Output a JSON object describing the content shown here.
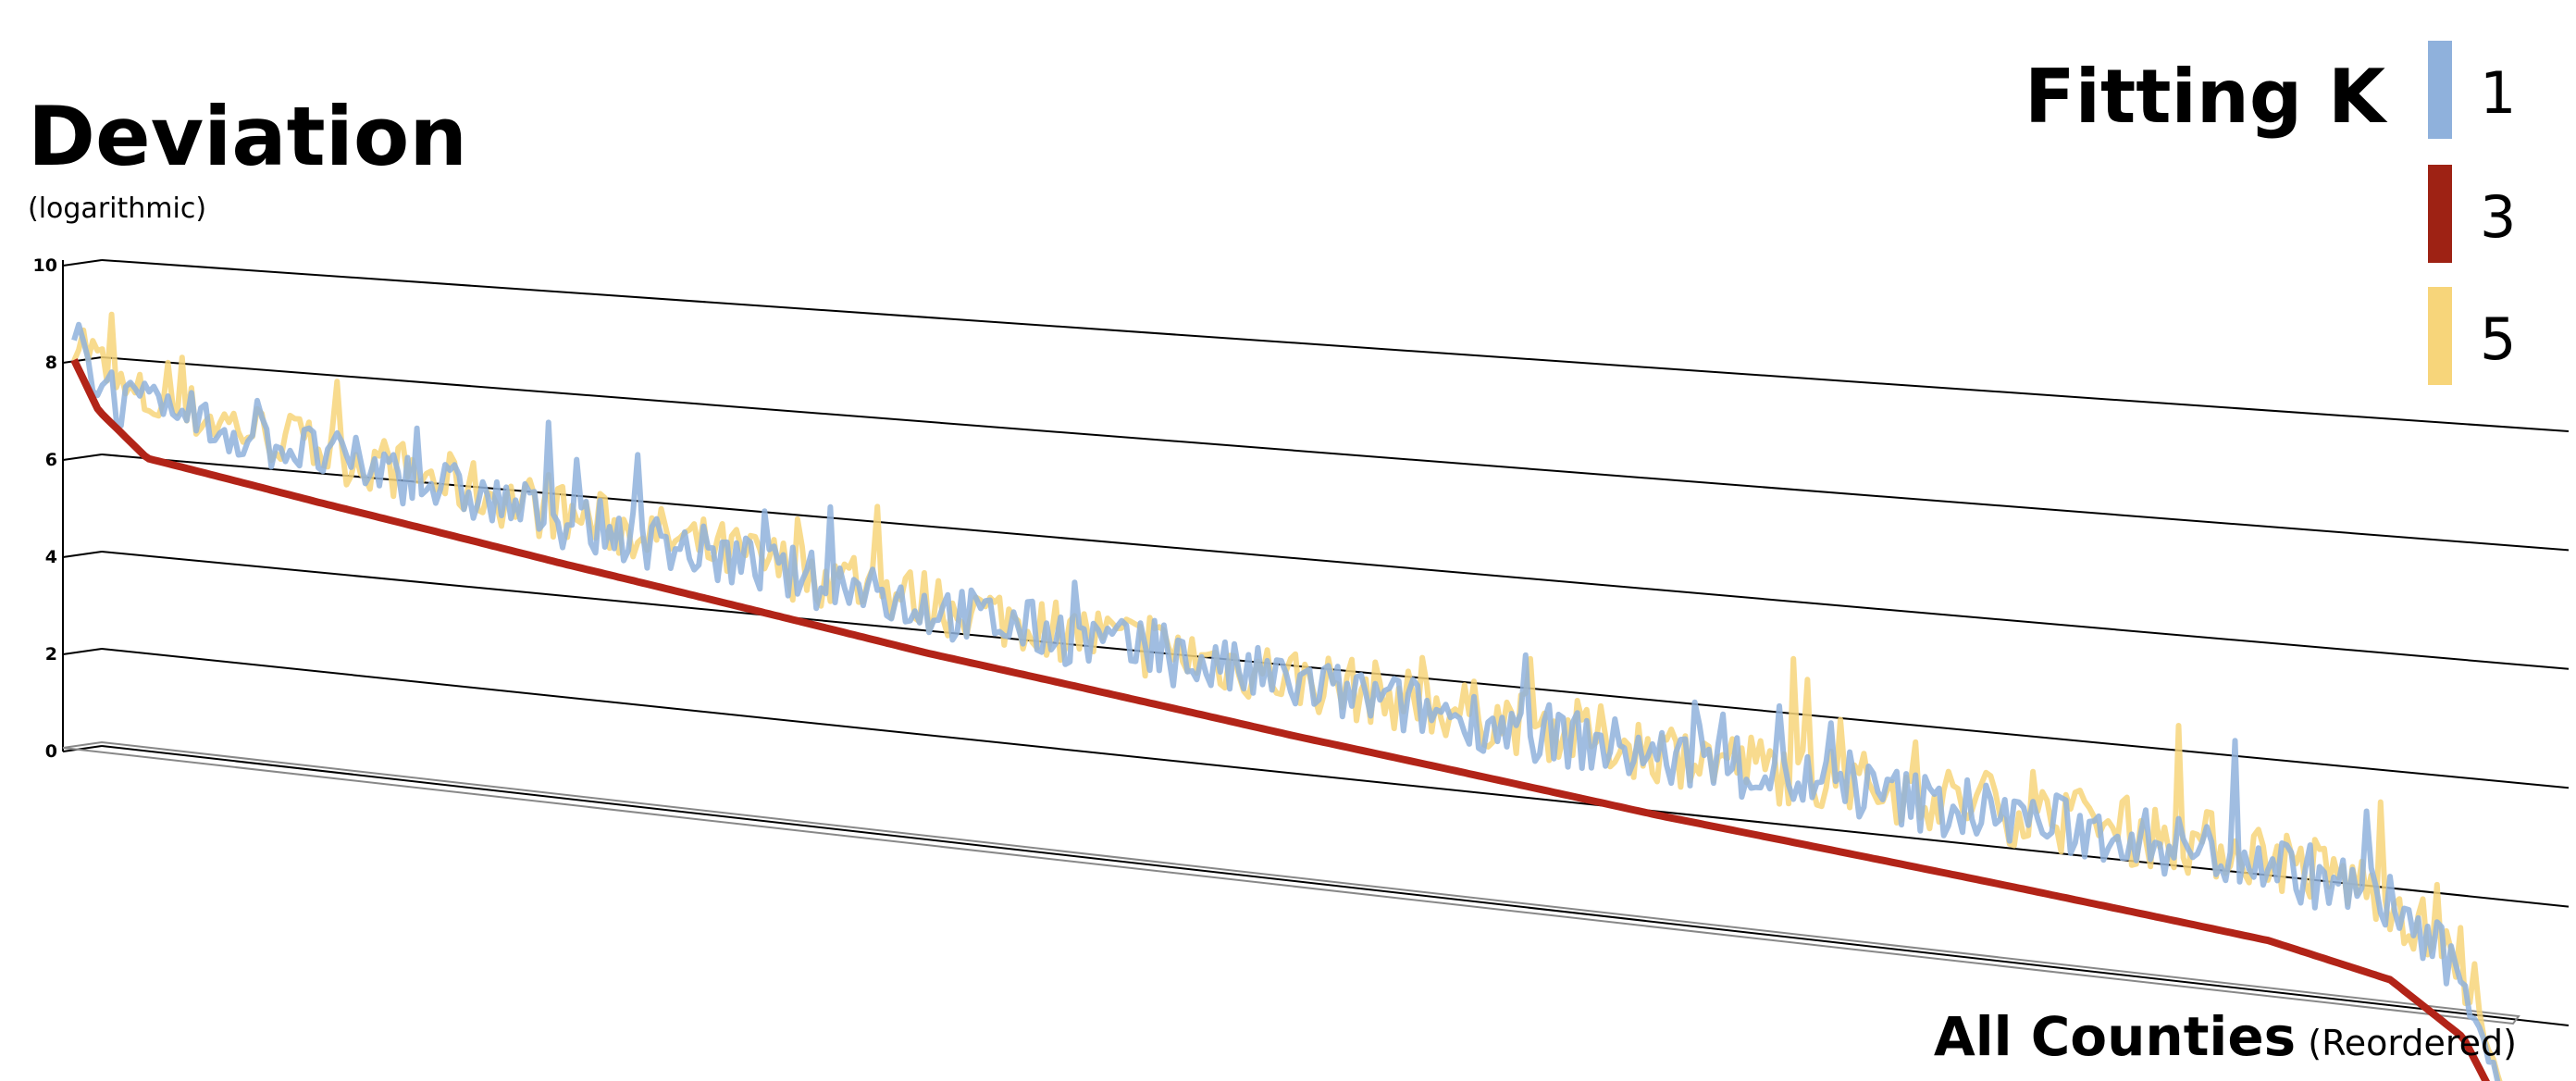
{
  "chart_data": {
    "type": "line",
    "title": "Deviation",
    "ylabel": "Deviation",
    "ylabel_note": "(logarithmic)",
    "xlabel": "All Counties",
    "xlabel_note": "(Reordered)",
    "ylim": [
      0,
      10
    ],
    "yticks": [
      "0",
      "2",
      "4",
      "6",
      "8",
      "10"
    ],
    "n_points": 520,
    "legend": {
      "title": "Fitting K",
      "position": "top-right",
      "entries": [
        {
          "label": "1",
          "color": "#8fb1dc"
        },
        {
          "label": "3",
          "color": "#9e2214"
        },
        {
          "label": "5",
          "color": "#f7d57a"
        }
      ]
    },
    "series": [
      {
        "name": "3",
        "color": "#b22418",
        "description": "monotonically decreasing baseline",
        "keypoints": [
          [
            0,
            8.0
          ],
          [
            0.01,
            7.0
          ],
          [
            0.03,
            6.1
          ],
          [
            0.1,
            5.5
          ],
          [
            0.2,
            4.7
          ],
          [
            0.35,
            3.6
          ],
          [
            0.5,
            2.7
          ],
          [
            0.65,
            1.9
          ],
          [
            0.8,
            1.25
          ],
          [
            0.9,
            0.8
          ],
          [
            0.95,
            0.35
          ],
          [
            0.98,
            -0.5
          ],
          [
            1.0,
            -2.0
          ]
        ]
      },
      {
        "name": "1",
        "color": "#8fb1dc",
        "description": "noisy series above the K=3 baseline",
        "keypoints": [
          [
            0,
            8.2
          ],
          [
            0.02,
            7.0
          ],
          [
            0.1,
            6.3
          ],
          [
            0.2,
            5.4
          ],
          [
            0.35,
            4.3
          ],
          [
            0.5,
            3.5
          ],
          [
            0.65,
            2.8
          ],
          [
            0.8,
            2.3
          ],
          [
            0.9,
            2.0
          ],
          [
            0.95,
            1.5
          ],
          [
            0.98,
            0.3
          ],
          [
            1.0,
            -1.8
          ]
        ],
        "noise": 0.55
      },
      {
        "name": "5",
        "color": "#f7d57a",
        "description": "noisy series overlapping K=1",
        "keypoints": [
          [
            0,
            8.4
          ],
          [
            0.02,
            7.2
          ],
          [
            0.1,
            6.4
          ],
          [
            0.2,
            5.5
          ],
          [
            0.35,
            4.4
          ],
          [
            0.5,
            3.6
          ],
          [
            0.65,
            2.9
          ],
          [
            0.8,
            2.4
          ],
          [
            0.9,
            2.1
          ],
          [
            0.95,
            1.6
          ],
          [
            0.98,
            0.4
          ],
          [
            1.0,
            -1.8
          ]
        ],
        "noise": 0.6
      }
    ]
  }
}
